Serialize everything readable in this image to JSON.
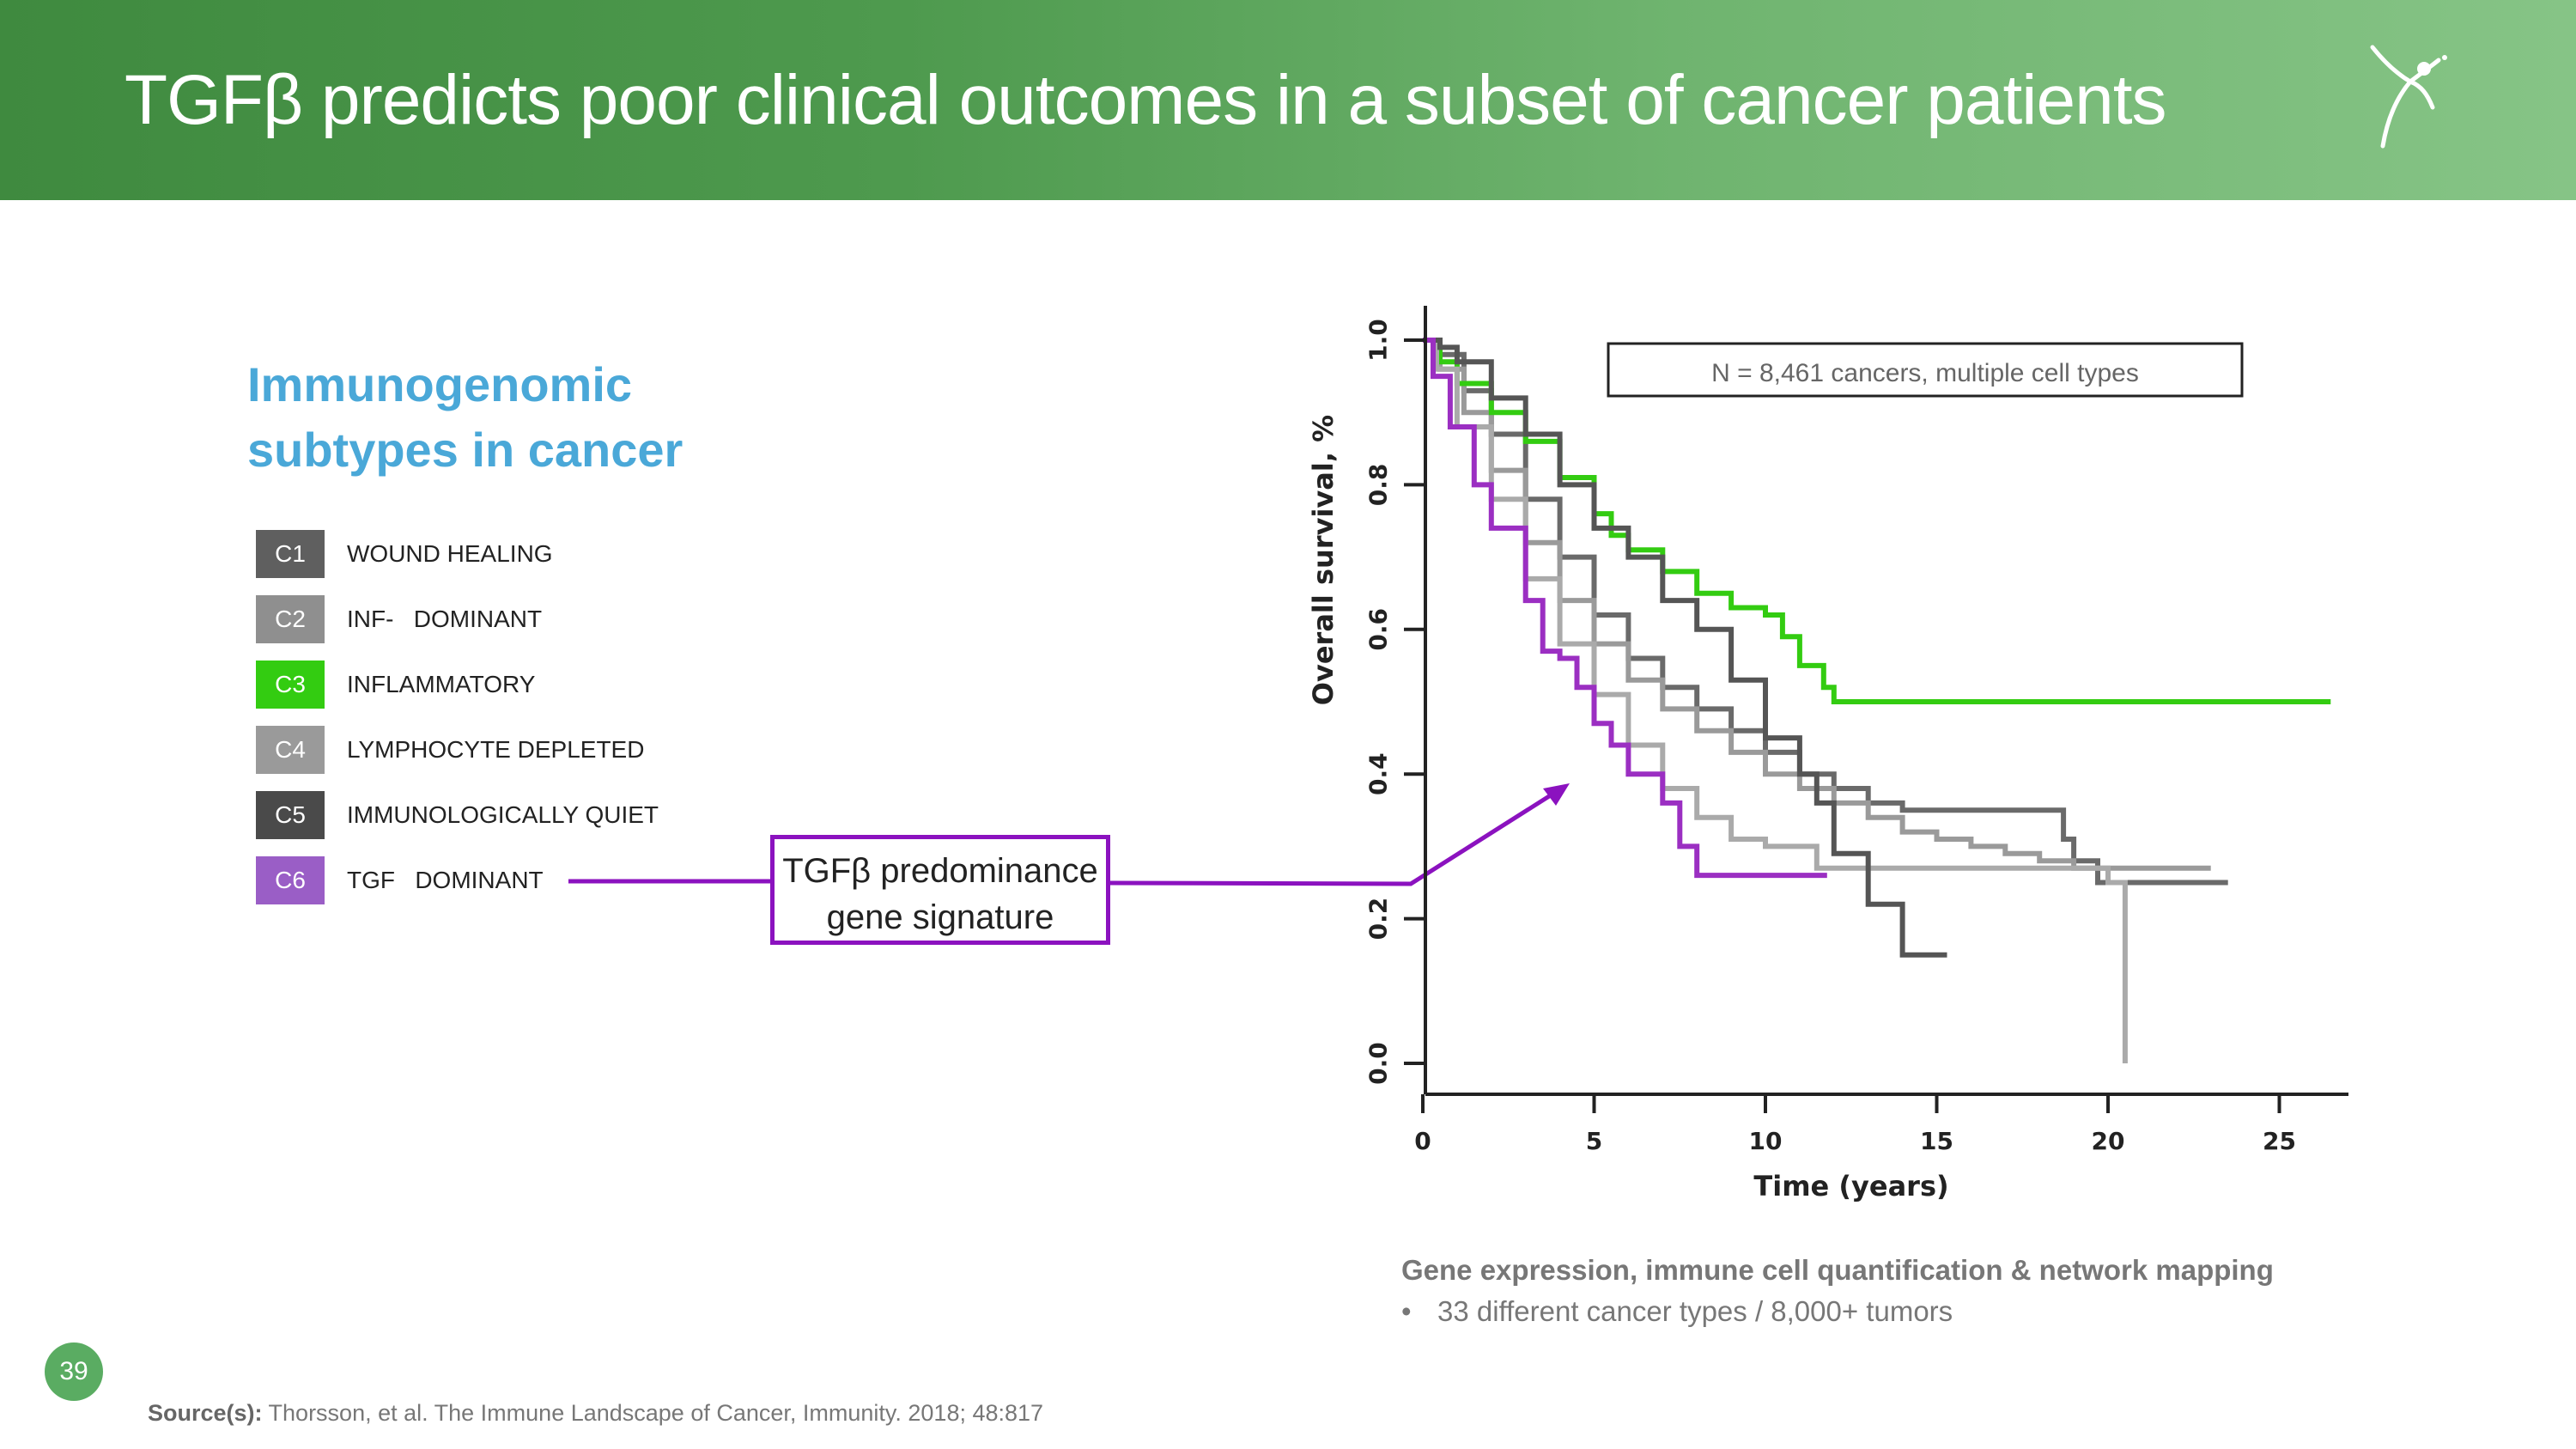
{
  "header": {
    "title": "TGFβ predicts poor clinical outcomes in a subset of cancer patients",
    "accent_color": "#4e9a4e"
  },
  "left_panel": {
    "subtitle_line1": "Immunogenomic",
    "subtitle_line2": "subtypes in cancer",
    "subtypes": [
      {
        "code": "C1",
        "label": "WOUND HEALING",
        "color": "#5f5f5f"
      },
      {
        "code": "C2",
        "label": "INF-   DOMINANT",
        "color": "#8f8f8f"
      },
      {
        "code": "C3",
        "label": "INFLAMMATORY",
        "color": "#33cc11"
      },
      {
        "code": "C4",
        "label": "LYMPHOCYTE DEPLETED",
        "color": "#9a9a9a"
      },
      {
        "code": "C5",
        "label": "IMMUNOLOGICALLY QUIET",
        "color": "#4a4a4a"
      },
      {
        "code": "C6",
        "label": "TGF   DOMINANT",
        "color": "#9a5ec6"
      }
    ],
    "callout_line1": "TGFβ predominance",
    "callout_line2": "gene signature",
    "callout_color": "#8b12bf"
  },
  "chart_data": {
    "type": "line",
    "title": "",
    "xlabel": "Time (years)",
    "ylabel": "Overall survival, %",
    "xlim": [
      0,
      27
    ],
    "ylim": [
      0,
      1.05
    ],
    "xticks": [
      0,
      5,
      10,
      15,
      20,
      25
    ],
    "yticks": [
      0.0,
      0.2,
      0.4,
      0.6,
      0.8,
      1.0
    ],
    "xtick_labels": [
      "0",
      "5",
      "10",
      "15",
      "20",
      "25"
    ],
    "ytick_labels": [
      "0.0",
      "0.2",
      "0.4",
      "0.6",
      "0.8",
      "1.0"
    ],
    "annotation": "N = 8,461 cancers, multiple cell types",
    "series": [
      {
        "name": "C1",
        "color": "#6a6a6a",
        "x": [
          0,
          0.5,
          1.2,
          2,
          3,
          4,
          5,
          6,
          7,
          8,
          9,
          10,
          11,
          12,
          13,
          14,
          15,
          16,
          17,
          18,
          18.7,
          19,
          19.7,
          21,
          23.5
        ],
        "y": [
          1.0,
          0.98,
          0.93,
          0.87,
          0.78,
          0.7,
          0.62,
          0.56,
          0.52,
          0.49,
          0.46,
          0.43,
          0.4,
          0.38,
          0.36,
          0.35,
          0.35,
          0.35,
          0.35,
          0.35,
          0.31,
          0.28,
          0.25,
          0.25,
          0.25
        ]
      },
      {
        "name": "C2",
        "color": "#9a9a9a",
        "x": [
          0,
          0.5,
          1.2,
          2,
          3,
          4,
          5,
          6,
          7,
          8,
          9,
          10,
          11,
          12,
          13,
          14,
          15,
          16,
          17,
          18,
          19,
          20,
          21,
          22,
          23
        ],
        "y": [
          1.0,
          0.96,
          0.9,
          0.82,
          0.72,
          0.64,
          0.58,
          0.53,
          0.49,
          0.46,
          0.43,
          0.4,
          0.38,
          0.36,
          0.34,
          0.32,
          0.31,
          0.3,
          0.29,
          0.28,
          0.27,
          0.27,
          0.27,
          0.27,
          0.27
        ]
      },
      {
        "name": "C3",
        "color": "#33cc11",
        "x": [
          0,
          0.5,
          1,
          2,
          3,
          4,
          5,
          5.5,
          6,
          7,
          8,
          9,
          10,
          10.5,
          11,
          11.7,
          12,
          15,
          20,
          25,
          26.5
        ],
        "y": [
          1.0,
          0.97,
          0.94,
          0.9,
          0.86,
          0.81,
          0.76,
          0.73,
          0.71,
          0.68,
          0.65,
          0.63,
          0.62,
          0.59,
          0.55,
          0.52,
          0.5,
          0.5,
          0.5,
          0.5,
          0.5
        ]
      },
      {
        "name": "C4",
        "color": "#aaaaaa",
        "x": [
          0,
          0.4,
          1,
          2,
          3,
          4,
          5,
          6,
          7,
          8,
          9,
          10,
          11,
          11.5,
          12,
          15,
          18,
          20,
          20.4,
          20.5
        ],
        "y": [
          1.0,
          0.96,
          0.88,
          0.78,
          0.67,
          0.58,
          0.51,
          0.44,
          0.38,
          0.34,
          0.31,
          0.3,
          0.3,
          0.27,
          0.27,
          0.27,
          0.27,
          0.25,
          0.25,
          0.0
        ]
      },
      {
        "name": "C5",
        "color": "#555555",
        "x": [
          0,
          0.5,
          1,
          2,
          3,
          4,
          5,
          6,
          7,
          8,
          9,
          10,
          11,
          11.5,
          12,
          13,
          14,
          15,
          15.3
        ],
        "y": [
          1.0,
          0.99,
          0.97,
          0.92,
          0.87,
          0.8,
          0.74,
          0.7,
          0.64,
          0.6,
          0.53,
          0.45,
          0.4,
          0.36,
          0.29,
          0.22,
          0.15,
          0.15,
          0.15
        ]
      },
      {
        "name": "C6",
        "color": "#9b2fc2",
        "x": [
          0,
          0.3,
          0.8,
          1.5,
          2,
          3,
          3.5,
          4,
          4.5,
          5,
          5.5,
          6,
          7,
          7.5,
          8,
          9,
          10,
          11,
          11.8
        ],
        "y": [
          1.0,
          0.95,
          0.88,
          0.8,
          0.74,
          0.64,
          0.57,
          0.56,
          0.52,
          0.47,
          0.44,
          0.4,
          0.36,
          0.3,
          0.26,
          0.26,
          0.26,
          0.26,
          0.26
        ]
      }
    ]
  },
  "caption": {
    "heading": "Gene expression, immune cell quantification & network mapping",
    "bullet": "33 different cancer types / 8,000+ tumors"
  },
  "footer": {
    "page_number": "39",
    "source_label": "Source(s):",
    "source_text": " Thorsson, et al. The Immune Landscape of Cancer, Immunity. 2018; 48:817"
  }
}
